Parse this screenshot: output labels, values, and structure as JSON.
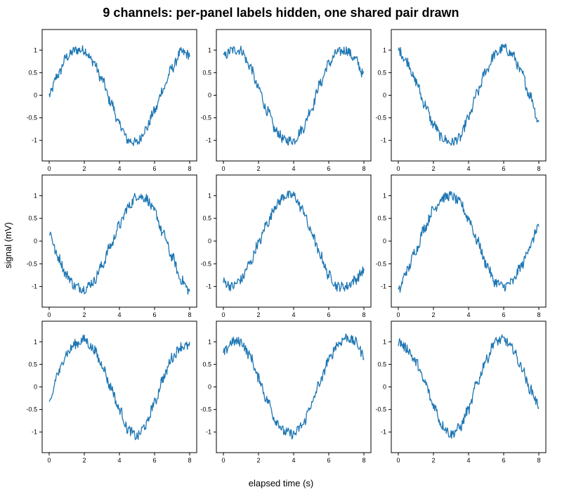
{
  "title": "9 channels: per-panel labels hidden, one shared pair drawn",
  "xlabel": "elapsed time (s)",
  "ylabel": "signal (mV)",
  "colors": {
    "line": "#1f77b4"
  },
  "chart_data": {
    "type": "line",
    "grid": false,
    "xlim": [
      0,
      8
    ],
    "ylim": [
      -1.3,
      1.3
    ],
    "xticks": [
      0,
      2,
      4,
      6,
      8
    ],
    "xtick_labels": [
      "0",
      "2",
      "4",
      "6",
      "8"
    ],
    "yticks": [
      -1,
      -0.5,
      0,
      0.5,
      1
    ],
    "ytick_labels": [
      "-1",
      "-0.5",
      "0",
      "0.5",
      "1"
    ],
    "x": [
      0,
      0.5,
      1,
      1.5,
      2,
      2.5,
      3,
      3.5,
      4,
      4.5,
      5,
      5.5,
      6,
      6.5,
      7,
      7.5,
      8
    ],
    "panels": [
      {
        "y": [
          0.0,
          0.45,
          0.85,
          1.0,
          1.0,
          0.75,
          0.35,
          -0.15,
          -0.65,
          -1.0,
          -1.05,
          -0.75,
          -0.35,
          0.15,
          0.6,
          0.95,
          0.9
        ]
      },
      {
        "y": [
          0.85,
          1.0,
          1.0,
          0.65,
          0.15,
          -0.35,
          -0.8,
          -1.0,
          -1.0,
          -0.75,
          -0.3,
          0.25,
          0.7,
          0.95,
          1.0,
          0.8,
          0.45
        ]
      },
      {
        "y": [
          1.0,
          0.75,
          0.3,
          -0.2,
          -0.65,
          -0.95,
          -1.05,
          -0.95,
          -0.5,
          0.05,
          0.55,
          0.9,
          1.05,
          0.9,
          0.5,
          0.0,
          -0.6
        ]
      },
      {
        "y": [
          0.2,
          -0.35,
          -0.75,
          -1.0,
          -1.05,
          -0.9,
          -0.55,
          -0.1,
          0.35,
          0.75,
          1.0,
          0.95,
          0.65,
          0.15,
          -0.35,
          -0.85,
          -1.1
        ]
      },
      {
        "y": [
          -0.9,
          -1.0,
          -0.85,
          -0.5,
          -0.05,
          0.4,
          0.8,
          1.0,
          1.0,
          0.7,
          0.2,
          -0.3,
          -0.75,
          -1.0,
          -1.0,
          -0.85,
          -0.65
        ]
      },
      {
        "y": [
          -1.1,
          -0.65,
          -0.2,
          0.3,
          0.7,
          0.95,
          1.0,
          0.85,
          0.5,
          0.0,
          -0.5,
          -0.9,
          -1.0,
          -0.9,
          -0.55,
          -0.1,
          0.35
        ]
      },
      {
        "y": [
          -0.4,
          0.3,
          0.75,
          0.95,
          1.05,
          0.85,
          0.5,
          0.0,
          -0.5,
          -0.95,
          -1.1,
          -0.85,
          -0.35,
          0.2,
          0.65,
          0.9,
          0.9
        ]
      },
      {
        "y": [
          0.75,
          1.0,
          1.0,
          0.7,
          0.2,
          -0.3,
          -0.75,
          -1.0,
          -1.05,
          -0.85,
          -0.4,
          0.1,
          0.6,
          0.95,
          1.1,
          1.0,
          0.7
        ]
      },
      {
        "y": [
          1.0,
          0.85,
          0.55,
          0.1,
          -0.4,
          -0.85,
          -1.05,
          -0.9,
          -0.5,
          0.1,
          0.6,
          1.0,
          1.05,
          0.85,
          0.45,
          -0.05,
          -0.4
        ]
      }
    ]
  }
}
